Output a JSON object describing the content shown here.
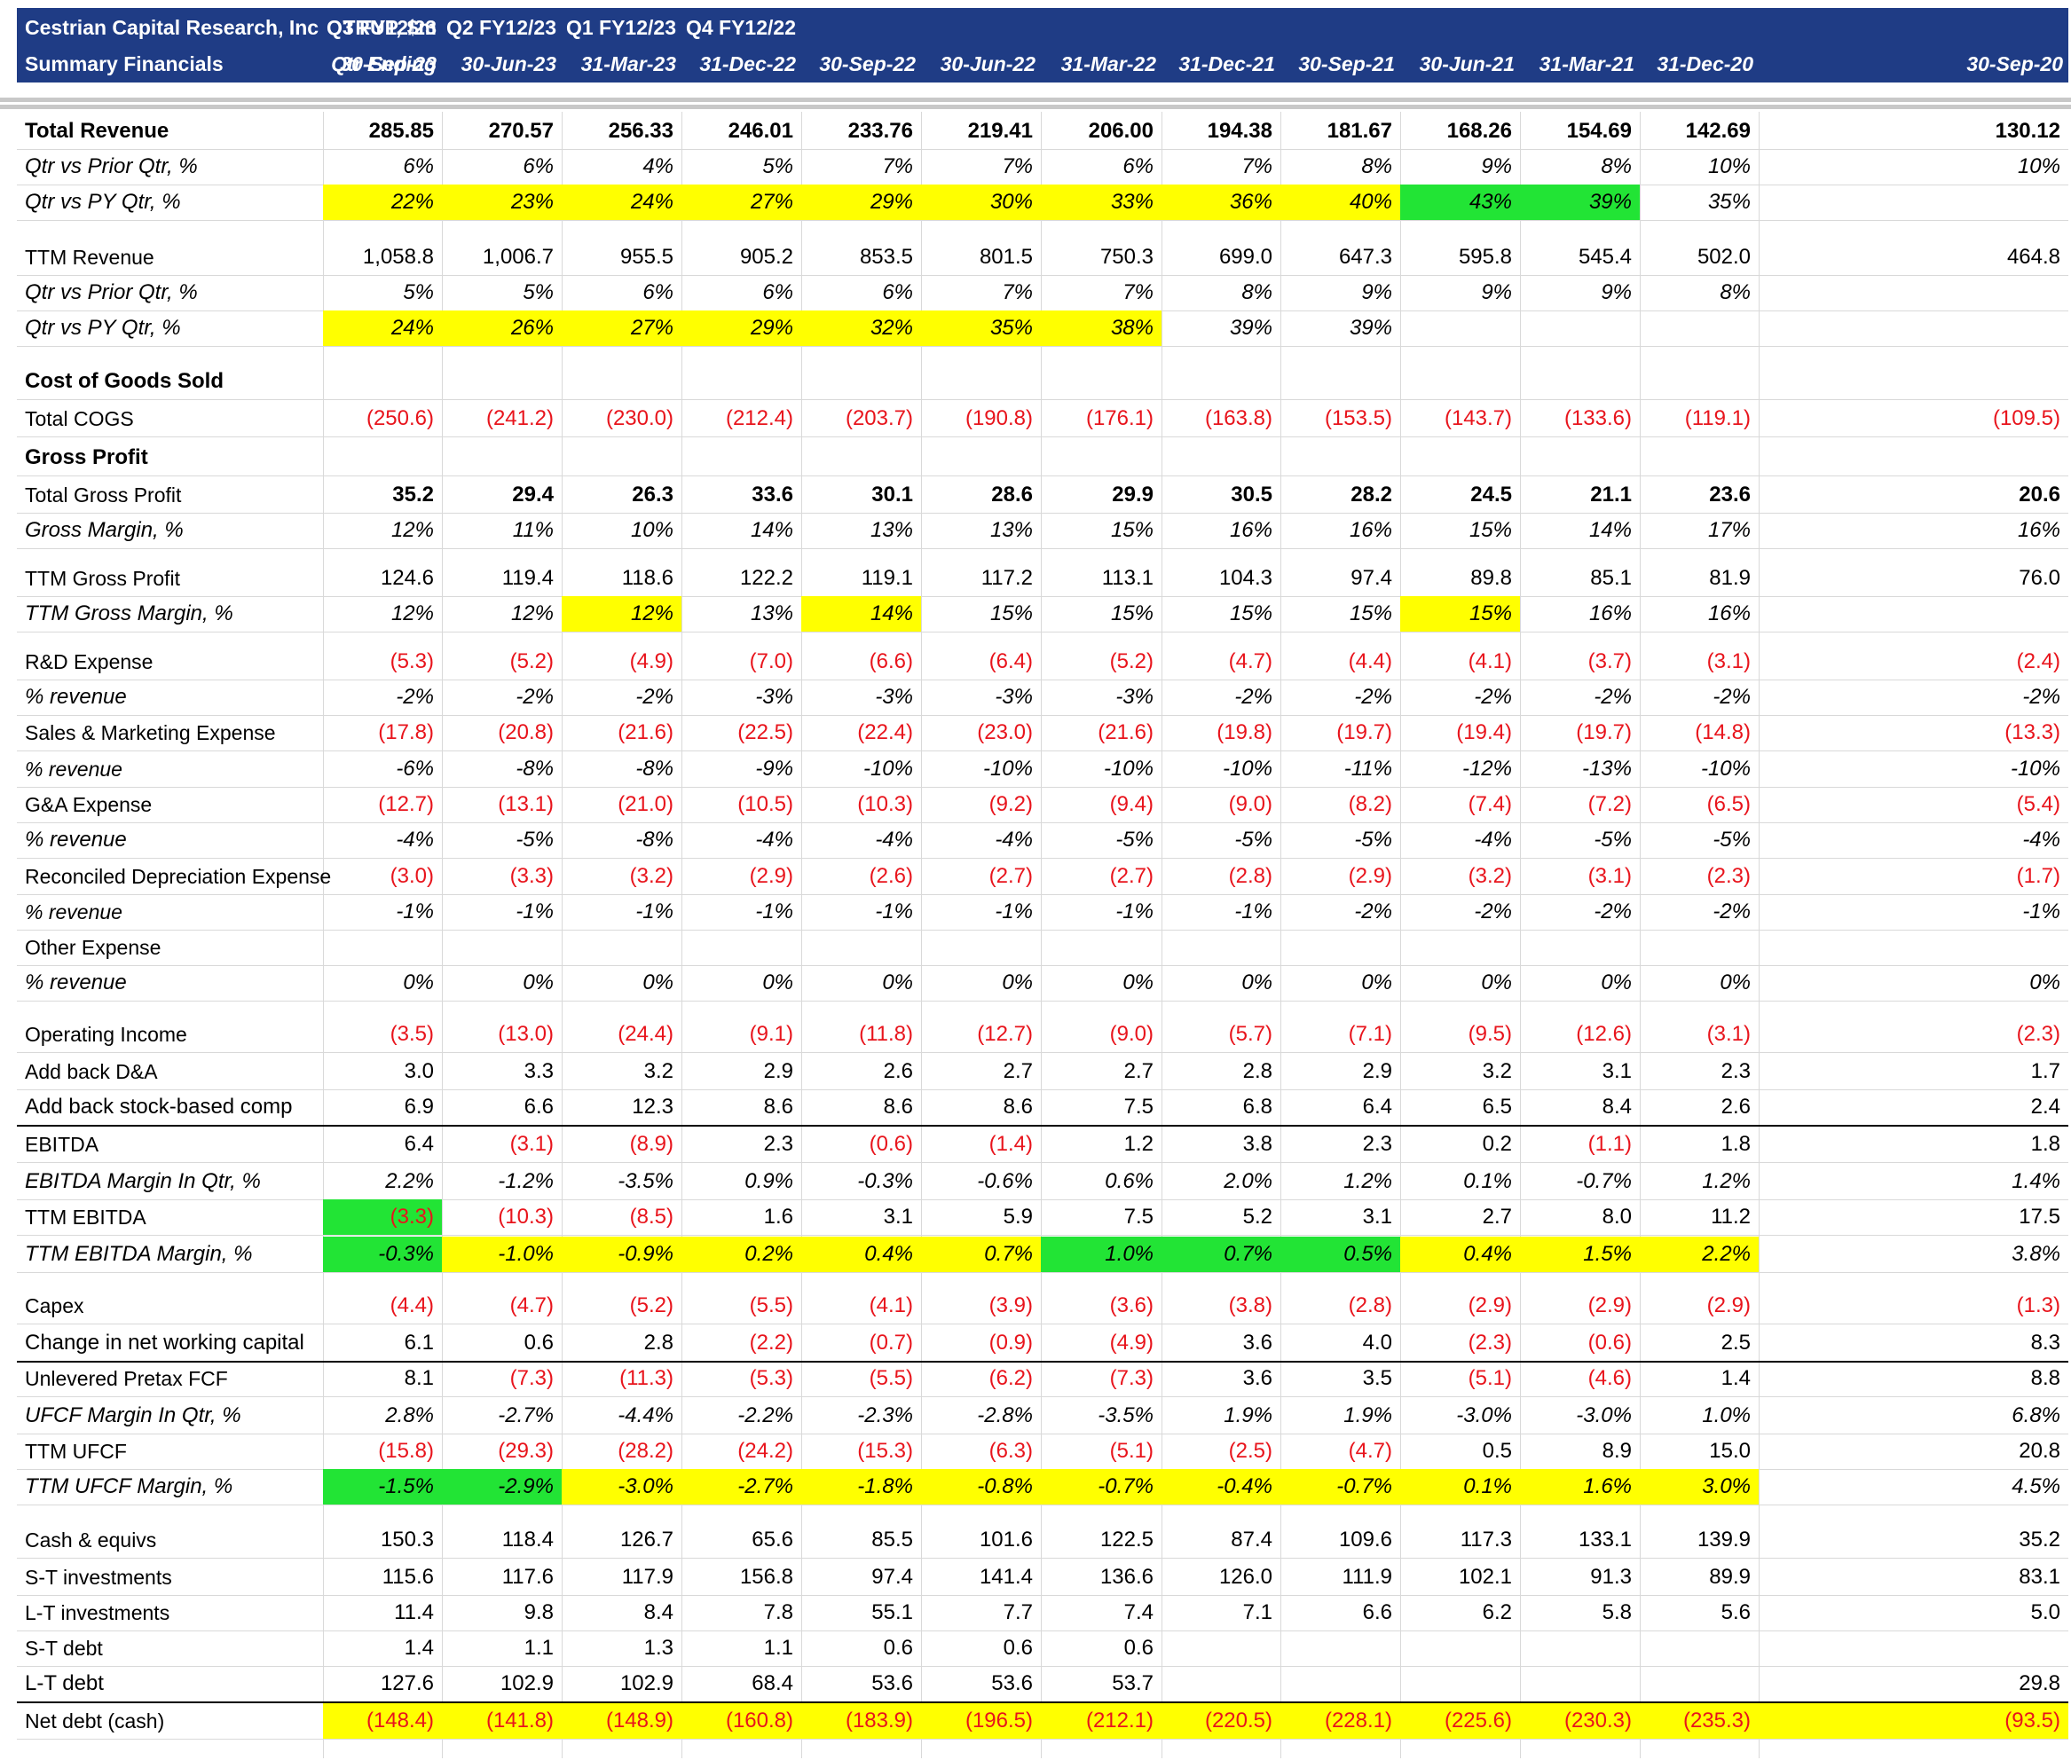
{
  "header": {
    "company": "Cestrian Capital Research, Inc",
    "subtitle": "Summary Financials",
    "ticker": "TRUP, $m",
    "qtr_ending": "Qtr Ending",
    "quarters": [
      "Q3 FY12/23",
      "Q2 FY12/23",
      "Q1 FY12/23",
      "Q4 FY12/22",
      "",
      "",
      "",
      "",
      "",
      "",
      "",
      "",
      ""
    ],
    "dates": [
      "30-Sep-23",
      "30-Jun-23",
      "31-Mar-23",
      "31-Dec-22",
      "30-Sep-22",
      "30-Jun-22",
      "31-Mar-22",
      "31-Dec-21",
      "30-Sep-21",
      "30-Jun-21",
      "31-Mar-21",
      "31-Dec-20",
      "30-Sep-20"
    ]
  },
  "colors": {
    "header_bg": "#1f3c85",
    "negative": "#e8141c",
    "highlight_yellow": "#ffff00",
    "highlight_green": "#22e435"
  },
  "rows": [
    {
      "label": "Total Revenue",
      "style": "b lg",
      "values": [
        "285.85",
        "270.57",
        "256.33",
        "246.01",
        "233.76",
        "219.41",
        "206.00",
        "194.38",
        "181.67",
        "168.26",
        "154.69",
        "142.69",
        "130.12"
      ],
      "valstyle": "b"
    },
    {
      "label": "Qtr vs Prior Qtr, %",
      "style": "i lg",
      "values": [
        "6%",
        "6%",
        "4%",
        "5%",
        "7%",
        "7%",
        "6%",
        "7%",
        "8%",
        "9%",
        "8%",
        "10%",
        "10%"
      ],
      "valstyle": "i"
    },
    {
      "label": "Qtr vs PY Qtr, %",
      "style": "i lg",
      "values": [
        "22%",
        "23%",
        "24%",
        "27%",
        "29%",
        "30%",
        "33%",
        "36%",
        "40%",
        "43%",
        "39%",
        "35%",
        ""
      ],
      "valstyle": "i",
      "hl": [
        "y",
        "y",
        "y",
        "y",
        "y",
        "y",
        "y",
        "y",
        "y",
        "g",
        "g",
        "",
        ""
      ]
    },
    {
      "label": "TTM Revenue",
      "style": "",
      "values": [
        "1,058.8",
        "1,006.7",
        "955.5",
        "905.2",
        "853.5",
        "801.5",
        "750.3",
        "699.0",
        "647.3",
        "595.8",
        "545.4",
        "502.0",
        "464.8"
      ]
    },
    {
      "label": "Qtr vs Prior Qtr, %",
      "style": "i lg",
      "values": [
        "5%",
        "5%",
        "6%",
        "6%",
        "6%",
        "7%",
        "7%",
        "8%",
        "9%",
        "9%",
        "9%",
        "8%",
        ""
      ],
      "valstyle": "i"
    },
    {
      "label": "Qtr vs PY Qtr, %",
      "style": "i lg",
      "values": [
        "24%",
        "26%",
        "27%",
        "29%",
        "32%",
        "35%",
        "38%",
        "39%",
        "39%",
        "",
        "",
        "",
        ""
      ],
      "valstyle": "i",
      "hl": [
        "y",
        "y",
        "y",
        "y",
        "y",
        "y",
        "y",
        "",
        "",
        "",
        "",
        "",
        ""
      ]
    },
    {
      "label": "Cost of Goods Sold",
      "style": "b lg",
      "values": [
        "",
        "",
        "",
        "",
        "",
        "",
        "",
        "",
        "",
        "",
        "",
        "",
        ""
      ]
    },
    {
      "label": "Total COGS",
      "style": "",
      "values": [
        "(250.6)",
        "(241.2)",
        "(230.0)",
        "(212.4)",
        "(203.7)",
        "(190.8)",
        "(176.1)",
        "(163.8)",
        "(153.5)",
        "(143.7)",
        "(133.6)",
        "(119.1)",
        "(109.5)"
      ]
    },
    {
      "label": "Gross Profit",
      "style": "b lg",
      "values": [
        "",
        "",
        "",
        "",
        "",
        "",
        "",
        "",
        "",
        "",
        "",
        "",
        ""
      ]
    },
    {
      "label": "Total Gross Profit",
      "style": "",
      "values": [
        "35.2",
        "29.4",
        "26.3",
        "33.6",
        "30.1",
        "28.6",
        "29.9",
        "30.5",
        "28.2",
        "24.5",
        "21.1",
        "23.6",
        "20.6"
      ],
      "valstyle": "b"
    },
    {
      "label": "Gross Margin, %",
      "style": "i lg",
      "values": [
        "12%",
        "11%",
        "10%",
        "14%",
        "13%",
        "13%",
        "15%",
        "16%",
        "16%",
        "15%",
        "14%",
        "17%",
        "16%"
      ],
      "valstyle": "i"
    },
    {
      "label": "TTM Gross Profit",
      "style": "",
      "values": [
        "124.6",
        "119.4",
        "118.6",
        "122.2",
        "119.1",
        "117.2",
        "113.1",
        "104.3",
        "97.4",
        "89.8",
        "85.1",
        "81.9",
        "76.0"
      ]
    },
    {
      "label": "TTM Gross Margin, %",
      "style": "i lg",
      "values": [
        "12%",
        "12%",
        "12%",
        "13%",
        "14%",
        "15%",
        "15%",
        "15%",
        "15%",
        "15%",
        "16%",
        "16%",
        ""
      ],
      "valstyle": "i",
      "hl": [
        "",
        "",
        "y",
        "",
        "y",
        "",
        "",
        "",
        "",
        "y",
        "",
        "",
        ""
      ]
    },
    {
      "label": "R&D Expense",
      "style": "",
      "values": [
        "(5.3)",
        "(5.2)",
        "(4.9)",
        "(7.0)",
        "(6.6)",
        "(6.4)",
        "(5.2)",
        "(4.7)",
        "(4.4)",
        "(4.1)",
        "(3.7)",
        "(3.1)",
        "(2.4)"
      ]
    },
    {
      "label": "% revenue",
      "style": "i lg",
      "values": [
        "-2%",
        "-2%",
        "-2%",
        "-3%",
        "-3%",
        "-3%",
        "-3%",
        "-2%",
        "-2%",
        "-2%",
        "-2%",
        "-2%",
        "-2%"
      ],
      "valstyle": "i"
    },
    {
      "label": "Sales & Marketing Expense",
      "style": "",
      "values": [
        "(17.8)",
        "(20.8)",
        "(21.6)",
        "(22.5)",
        "(22.4)",
        "(23.0)",
        "(21.6)",
        "(19.8)",
        "(19.7)",
        "(19.4)",
        "(19.7)",
        "(14.8)",
        "(13.3)"
      ]
    },
    {
      "label": "% revenue",
      "style": "i",
      "values": [
        "-6%",
        "-8%",
        "-8%",
        "-9%",
        "-10%",
        "-10%",
        "-10%",
        "-10%",
        "-11%",
        "-12%",
        "-13%",
        "-10%",
        "-10%"
      ],
      "valstyle": "i"
    },
    {
      "label": "G&A Expense",
      "style": "",
      "values": [
        "(12.7)",
        "(13.1)",
        "(21.0)",
        "(10.5)",
        "(10.3)",
        "(9.2)",
        "(9.4)",
        "(9.0)",
        "(8.2)",
        "(7.4)",
        "(7.2)",
        "(6.5)",
        "(5.4)"
      ]
    },
    {
      "label": "% revenue",
      "style": "i lg",
      "values": [
        "-4%",
        "-5%",
        "-8%",
        "-4%",
        "-4%",
        "-4%",
        "-5%",
        "-5%",
        "-5%",
        "-4%",
        "-5%",
        "-5%",
        "-4%"
      ],
      "valstyle": "i"
    },
    {
      "label": "Reconciled Depreciation Expense",
      "style": "",
      "values": [
        "(3.0)",
        "(3.3)",
        "(3.2)",
        "(2.9)",
        "(2.6)",
        "(2.7)",
        "(2.7)",
        "(2.8)",
        "(2.9)",
        "(3.2)",
        "(3.1)",
        "(2.3)",
        "(1.7)"
      ]
    },
    {
      "label": "% revenue",
      "style": "i",
      "values": [
        "-1%",
        "-1%",
        "-1%",
        "-1%",
        "-1%",
        "-1%",
        "-1%",
        "-1%",
        "-2%",
        "-2%",
        "-2%",
        "-2%",
        "-1%"
      ],
      "valstyle": "i"
    },
    {
      "label": "Other Expense",
      "style": "",
      "values": [
        "",
        "",
        "",
        "",
        "",
        "",
        "",
        "",
        "",
        "",
        "",
        "",
        ""
      ]
    },
    {
      "label": "% revenue",
      "style": "i lg",
      "values": [
        "0%",
        "0%",
        "0%",
        "0%",
        "0%",
        "0%",
        "0%",
        "0%",
        "0%",
        "0%",
        "0%",
        "0%",
        "0%"
      ],
      "valstyle": "i"
    },
    {
      "label": "Operating Income",
      "style": "",
      "values": [
        "(3.5)",
        "(13.0)",
        "(24.4)",
        "(9.1)",
        "(11.8)",
        "(12.7)",
        "(9.0)",
        "(5.7)",
        "(7.1)",
        "(9.5)",
        "(12.6)",
        "(3.1)",
        "(2.3)"
      ]
    },
    {
      "label": "Add back D&A",
      "style": "",
      "values": [
        "3.0",
        "3.3",
        "3.2",
        "2.9",
        "2.6",
        "2.7",
        "2.7",
        "2.8",
        "2.9",
        "3.2",
        "3.1",
        "2.3",
        "1.7"
      ]
    },
    {
      "label": "Add back stock-based comp",
      "style": "lg",
      "values": [
        "6.9",
        "6.6",
        "12.3",
        "8.6",
        "8.6",
        "8.6",
        "7.5",
        "6.8",
        "6.4",
        "6.5",
        "8.4",
        "2.6",
        "2.4"
      ]
    },
    {
      "label": "EBITDA",
      "style": "",
      "values": [
        "6.4",
        "(3.1)",
        "(8.9)",
        "2.3",
        "(0.6)",
        "(1.4)",
        "1.2",
        "3.8",
        "2.3",
        "0.2",
        "(1.1)",
        "1.8",
        "1.8"
      ]
    },
    {
      "label": "EBITDA Margin In Qtr, %",
      "style": "i lg",
      "values": [
        "2.2%",
        "-1.2%",
        "-3.5%",
        "0.9%",
        "-0.3%",
        "-0.6%",
        "0.6%",
        "2.0%",
        "1.2%",
        "0.1%",
        "-0.7%",
        "1.2%",
        "1.4%"
      ],
      "valstyle": "i"
    },
    {
      "label": "TTM EBITDA",
      "style": "",
      "values": [
        "(3.3)",
        "(10.3)",
        "(8.5)",
        "1.6",
        "3.1",
        "5.9",
        "7.5",
        "5.2",
        "3.1",
        "2.7",
        "8.0",
        "11.2",
        "17.5"
      ],
      "hl": [
        "g",
        "",
        "",
        "",
        "",
        "",
        "",
        "",
        "",
        "",
        "",
        "",
        ""
      ]
    },
    {
      "label": "TTM EBITDA Margin, %",
      "style": "i lg",
      "values": [
        "-0.3%",
        "-1.0%",
        "-0.9%",
        "0.2%",
        "0.4%",
        "0.7%",
        "1.0%",
        "0.7%",
        "0.5%",
        "0.4%",
        "1.5%",
        "2.2%",
        "3.8%"
      ],
      "valstyle": "i",
      "hl": [
        "g",
        "y",
        "y",
        "y",
        "y",
        "y",
        "g",
        "g",
        "g",
        "y",
        "y",
        "y",
        ""
      ]
    },
    {
      "label": "Capex",
      "style": "",
      "values": [
        "(4.4)",
        "(4.7)",
        "(5.2)",
        "(5.5)",
        "(4.1)",
        "(3.9)",
        "(3.6)",
        "(3.8)",
        "(2.8)",
        "(2.9)",
        "(2.9)",
        "(2.9)",
        "(1.3)"
      ]
    },
    {
      "label": "Change in net working capital",
      "style": "lg",
      "values": [
        "6.1",
        "0.6",
        "2.8",
        "(2.2)",
        "(0.7)",
        "(0.9)",
        "(4.9)",
        "3.6",
        "4.0",
        "(2.3)",
        "(0.6)",
        "2.5",
        "8.3"
      ]
    },
    {
      "label": "Unlevered Pretax FCF",
      "style": "",
      "values": [
        "8.1",
        "(7.3)",
        "(11.3)",
        "(5.3)",
        "(5.5)",
        "(6.2)",
        "(7.3)",
        "3.6",
        "3.5",
        "(5.1)",
        "(4.6)",
        "1.4",
        "8.8"
      ]
    },
    {
      "label": "UFCF Margin In Qtr, %",
      "style": "i lg",
      "values": [
        "2.8%",
        "-2.7%",
        "-4.4%",
        "-2.2%",
        "-2.3%",
        "-2.8%",
        "-3.5%",
        "1.9%",
        "1.9%",
        "-3.0%",
        "-3.0%",
        "1.0%",
        "6.8%"
      ],
      "valstyle": "i"
    },
    {
      "label": "TTM UFCF",
      "style": "",
      "values": [
        "(15.8)",
        "(29.3)",
        "(28.2)",
        "(24.2)",
        "(15.3)",
        "(6.3)",
        "(5.1)",
        "(2.5)",
        "(4.7)",
        "0.5",
        "8.9",
        "15.0",
        "20.8"
      ]
    },
    {
      "label": "TTM UFCF Margin, %",
      "style": "i lg",
      "values": [
        "-1.5%",
        "-2.9%",
        "-3.0%",
        "-2.7%",
        "-1.8%",
        "-0.8%",
        "-0.7%",
        "-0.4%",
        "-0.7%",
        "0.1%",
        "1.6%",
        "3.0%",
        "4.5%"
      ],
      "valstyle": "i",
      "hl": [
        "g",
        "g",
        "y",
        "y",
        "y",
        "y",
        "y",
        "y",
        "y",
        "y",
        "y",
        "y",
        ""
      ]
    },
    {
      "label": "Cash & equivs",
      "style": "",
      "values": [
        "150.3",
        "118.4",
        "126.7",
        "65.6",
        "85.5",
        "101.6",
        "122.5",
        "87.4",
        "109.6",
        "117.3",
        "133.1",
        "139.9",
        "35.2"
      ]
    },
    {
      "label": "S-T investments",
      "style": "",
      "values": [
        "115.6",
        "117.6",
        "117.9",
        "156.8",
        "97.4",
        "141.4",
        "136.6",
        "126.0",
        "111.9",
        "102.1",
        "91.3",
        "89.9",
        "83.1"
      ]
    },
    {
      "label": "L-T investments",
      "style": "",
      "values": [
        "11.4",
        "9.8",
        "8.4",
        "7.8",
        "55.1",
        "7.7",
        "7.4",
        "7.1",
        "6.6",
        "6.2",
        "5.8",
        "5.6",
        "5.0"
      ]
    },
    {
      "label": "S-T debt",
      "style": "",
      "values": [
        "1.4",
        "1.1",
        "1.3",
        "1.1",
        "0.6",
        "0.6",
        "0.6",
        "",
        "",
        "",
        "",
        "",
        ""
      ]
    },
    {
      "label": "L-T debt",
      "style": "lg",
      "values": [
        "127.6",
        "102.9",
        "102.9",
        "68.4",
        "53.6",
        "53.6",
        "53.7",
        "",
        "",
        "",
        "",
        "",
        "29.8"
      ]
    },
    {
      "label": "Net debt (cash)",
      "style": "",
      "values": [
        "(148.4)",
        "(141.8)",
        "(148.9)",
        "(160.8)",
        "(183.9)",
        "(196.5)",
        "(212.1)",
        "(220.5)",
        "(228.1)",
        "(225.6)",
        "(230.3)",
        "(235.3)",
        "(93.5)"
      ],
      "hl": [
        "y",
        "y",
        "y",
        "y",
        "y",
        "y",
        "y",
        "y",
        "y",
        "y",
        "y",
        "y",
        "y"
      ]
    }
  ]
}
